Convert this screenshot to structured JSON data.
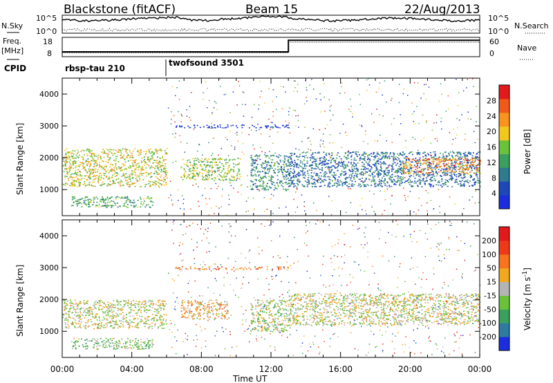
{
  "header": {
    "radar": "Blackstone (fitACF)",
    "beam": "Beam 15",
    "date": "22/Aug/2013"
  },
  "chart_data": [
    {
      "type": "line",
      "panel": "noise",
      "left_label": "N.Sky",
      "right_label": "N.Search",
      "left_ticks": [
        "10^5",
        "10^0"
      ],
      "right_ticks": [
        "10^5",
        "10^0"
      ],
      "series": [
        {
          "name": "N.Sky",
          "style": "solid"
        },
        {
          "name": "N.Search",
          "style": "dotted"
        }
      ]
    },
    {
      "type": "line",
      "panel": "frequency",
      "left_label": "Freq.",
      "left_unit": "[MHz]",
      "right_label": "Nave",
      "left_ticks": [
        18,
        8
      ],
      "right_ticks": [
        60,
        0
      ],
      "freq_ylim": [
        8,
        18
      ],
      "nave_ylim": [
        0,
        60
      ],
      "freq_values": [
        {
          "x": "00:00",
          "y": 10.5
        },
        {
          "x": "13:00",
          "y": 10.5
        },
        {
          "x": "13:00",
          "y": 16.5
        },
        {
          "x": "24:00",
          "y": 16.5
        }
      ],
      "nave_values": [
        {
          "x": "00:00",
          "y": 12
        },
        {
          "x": "13:00",
          "y": 12
        },
        {
          "x": "13:00",
          "y": 45
        },
        {
          "x": "24:00",
          "y": 45
        }
      ]
    },
    {
      "type": "table",
      "panel": "cpid",
      "label": "CPID",
      "programs": [
        {
          "name": "rbsp-tau 210",
          "start": "00:00",
          "end": "06:00"
        },
        {
          "name": "twofsound 3501",
          "start": "06:00",
          "end": "24:00"
        }
      ]
    },
    {
      "type": "heatmap",
      "panel": "power",
      "ylabel": "Slant Range [km]",
      "xlabel": "Time UT",
      "ylim": [
        180,
        4500
      ],
      "xlim": [
        "00:00",
        "24:00"
      ],
      "yticks": [
        1000,
        2000,
        3000,
        4000
      ],
      "colorbar": {
        "label": "Power [dB]",
        "ticks": [
          4,
          8,
          12,
          16,
          20,
          24,
          28
        ],
        "colors": [
          "#1c2de0",
          "#1d48b8",
          "#2e7a8e",
          "#3aa05e",
          "#6ac23a",
          "#f2c81e",
          "#f7931e",
          "#ef5a1a",
          "#e31a1c"
        ]
      },
      "echo_regions": [
        {
          "t_start": 0.0,
          "t_end": 6.0,
          "range_start": 1100,
          "range_end": 2300,
          "value": 18
        },
        {
          "t_start": 0.5,
          "t_end": 5.2,
          "range_start": 450,
          "range_end": 800,
          "value": 14
        },
        {
          "t_start": 6.8,
          "t_end": 10.2,
          "range_start": 1300,
          "range_end": 2000,
          "value": 16
        },
        {
          "t_start": 10.8,
          "t_end": 13.0,
          "range_start": 1000,
          "range_end": 2100,
          "value": 12
        },
        {
          "t_start": 13.0,
          "t_end": 24.0,
          "range_start": 1100,
          "range_end": 2200,
          "value": 10
        },
        {
          "t_start": 19.5,
          "t_end": 24.0,
          "range_start": 1500,
          "range_end": 2000,
          "value": 22
        },
        {
          "t_start": 6.5,
          "t_end": 13.0,
          "range_start": 2950,
          "range_end": 3050,
          "value": 6
        }
      ]
    },
    {
      "type": "heatmap",
      "panel": "velocity",
      "ylabel": "Slant Range [km]",
      "xlabel": "Time UT",
      "ylim": [
        180,
        4500
      ],
      "xlim": [
        "00:00",
        "24:00"
      ],
      "xticks": [
        "00:00",
        "04:00",
        "08:00",
        "12:00",
        "16:00",
        "20:00",
        "00:00"
      ],
      "yticks": [
        1000,
        2000,
        3000,
        4000
      ],
      "colorbar": {
        "label": "Velocity [m s",
        "label_superscript": "-1",
        "label_close": "]",
        "ticks": [
          200,
          100,
          50,
          15,
          -15,
          -50,
          -100,
          -200
        ],
        "colors": [
          "#1c2de0",
          "#2e7aa0",
          "#3aa05e",
          "#6ac23a",
          "#b4b4b4",
          "#f2a81e",
          "#f7731e",
          "#ef3a1a",
          "#e31a1c"
        ]
      },
      "echo_regions": [
        {
          "t_start": 0.0,
          "t_end": 6.0,
          "range_start": 1100,
          "range_end": 2000,
          "value": 0
        },
        {
          "t_start": 0.5,
          "t_end": 5.2,
          "range_start": 450,
          "range_end": 800,
          "value": -40
        },
        {
          "t_start": 6.8,
          "t_end": 9.5,
          "range_start": 1400,
          "range_end": 2000,
          "value": 40
        },
        {
          "t_start": 10.8,
          "t_end": 13.0,
          "range_start": 1000,
          "range_end": 2000,
          "value": -15
        },
        {
          "t_start": 13.0,
          "t_end": 24.0,
          "range_start": 1200,
          "range_end": 2200,
          "value": 0
        },
        {
          "t_start": 6.5,
          "t_end": 13.0,
          "range_start": 2950,
          "range_end": 3050,
          "value": 80
        }
      ]
    }
  ]
}
